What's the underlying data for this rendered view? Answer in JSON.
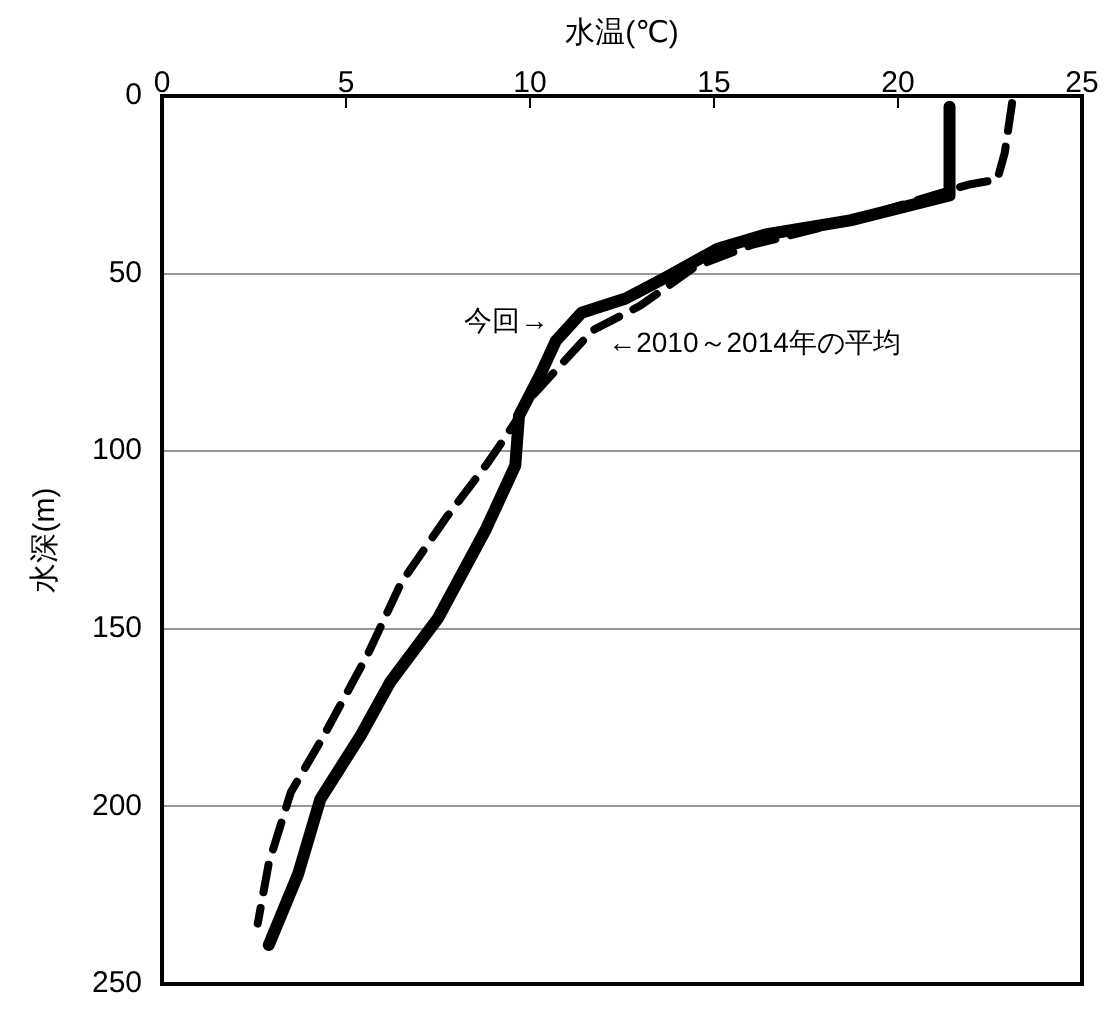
{
  "chart_data": {
    "type": "line",
    "xlabel": "水温(℃)",
    "ylabel": "水深(m)",
    "xlim": [
      0,
      25
    ],
    "xticks": [
      0,
      5,
      10,
      15,
      20,
      25
    ],
    "ylim": [
      250,
      0
    ],
    "yticks": [
      0,
      50,
      100,
      150,
      200,
      250
    ],
    "grid": "y",
    "marker": "none",
    "legend": false,
    "series": [
      {
        "color": "#000000",
        "line_style": "solid",
        "x": [
          21.4,
          21.4,
          18.7,
          16.4,
          15.1,
          13.7,
          12.6,
          11.4,
          10.7,
          10.3,
          9.7,
          9.6,
          8.8,
          7.5,
          6.2,
          5.4,
          4.3,
          3.7,
          2.9
        ],
        "values": [
          3,
          28,
          35,
          39,
          43,
          51,
          57,
          61,
          69,
          78,
          90,
          104,
          122,
          147,
          165,
          180,
          198,
          219,
          239
        ]
      },
      {
        "color": "#000000",
        "line_style": "dashed",
        "x": [
          23.1,
          22.9,
          22.7,
          21.9,
          18.7,
          16.0,
          14.5,
          13.0,
          11.7,
          10.9,
          10.1,
          9.2,
          8.8,
          7.7,
          6.5,
          5.6,
          4.4,
          3.5,
          2.9,
          2.6
        ],
        "values": [
          2,
          16,
          23.5,
          25,
          35,
          42,
          48,
          59,
          66,
          75,
          84,
          98,
          104,
          119,
          137,
          157,
          180,
          196,
          216,
          233
        ]
      }
    ],
    "annotations": [
      "今回→",
      "←2010～2014年の平均"
    ]
  }
}
